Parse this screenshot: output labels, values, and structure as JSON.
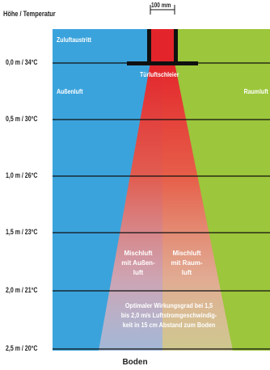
{
  "axis_title": "Höhe / Temperatur",
  "y_labels": [
    "0,0 m / 34°C",
    "0,5 m / 30°C",
    "1,0 m / 26°C",
    "1,5 m / 23°C",
    "2,0 m / 21°C",
    "2,5 m / 20°C"
  ],
  "dimension_label": "100 mm",
  "zuluft_label": "Zuluftaustritt",
  "curtain_label": "Türluftschleier",
  "outside_label": "Außenluft",
  "room_label": "Raumluft",
  "mix_outside": "Mischluft\nmit Außen-\nluft",
  "mix_room": "Mischluft\nmit Raum-\nluft",
  "optimum_text": "Optimaler Wirkungsgrad bei 1,5\nbis 2,0 m/s Luftstromgeschwindig-\nkeit in 15 cm Abstand zum Boden",
  "floor_label": "Boden",
  "colors": {
    "outside": "#3ba3dc",
    "room": "#9cc63b",
    "jet_top": "#e3252b",
    "jet_bottom": "#f4b9c2"
  }
}
